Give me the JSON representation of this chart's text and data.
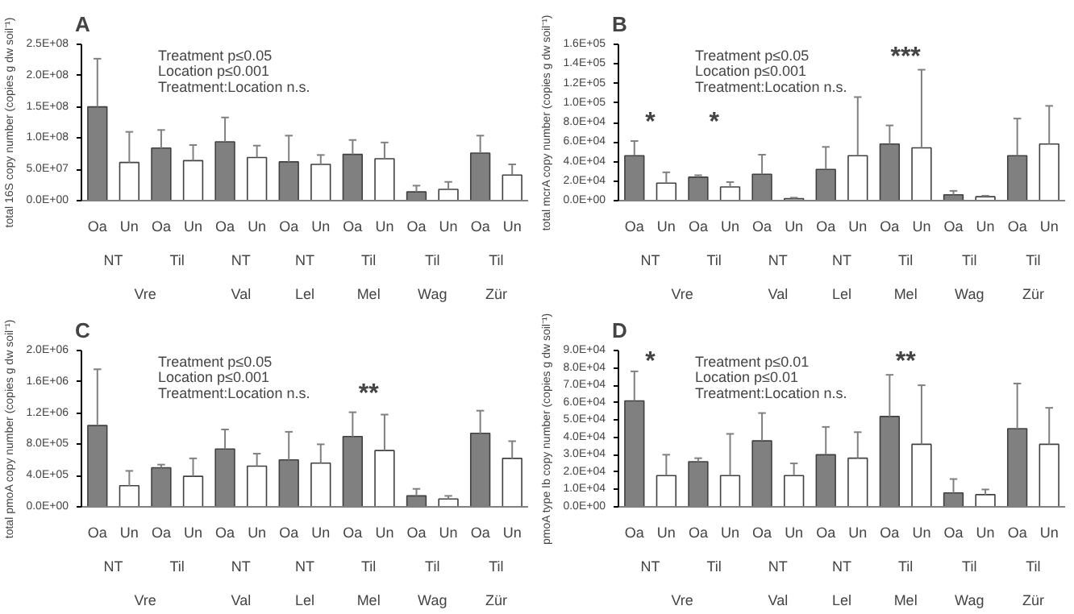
{
  "chart_data": [
    {
      "type": "bar",
      "title": "A",
      "ylabel": "total 16S copy number (copies g dw soil⁻¹)",
      "categories": [
        "NT",
        "Til",
        "NT",
        "NT",
        "Til",
        "Til",
        "Til"
      ],
      "series": [
        {
          "name": "Oa",
          "color": "#808080",
          "values": [
            150000000.0,
            84000000.0,
            94000000.0,
            62000000.0,
            74000000.0,
            14000000.0,
            76000000.0
          ],
          "errors": [
            [
              150000000.0,
              227000000.0
            ],
            [
              84000000.0,
              113000000.0
            ],
            [
              94000000.0,
              133000000.0
            ],
            [
              62000000.0,
              104000000.0
            ],
            [
              74000000.0,
              97000000.0
            ],
            [
              14000000.0,
              24000000.0
            ],
            [
              76000000.0,
              104000000.0
            ]
          ]
        },
        {
          "name": "Un",
          "color": "#ffffff",
          "values": [
            61000000.0,
            64000000.0,
            69000000.0,
            58000000.0,
            67000000.0,
            18000000.0,
            41000000.0
          ],
          "errors": [
            [
              61000000.0,
              110000000.0
            ],
            [
              64000000.0,
              89000000.0
            ],
            [
              69000000.0,
              88000000.0
            ],
            [
              58000000.0,
              73000000.0
            ],
            [
              67000000.0,
              93000000.0
            ],
            [
              18000000.0,
              30000000.0
            ],
            [
              41000000.0,
              58000000.0
            ]
          ]
        }
      ],
      "ylim": [
        0,
        250000000.0
      ],
      "yticks": [
        {
          "value": 0,
          "label": "0.0E+00"
        },
        {
          "value": 50000000.0,
          "label": "5.0E+07"
        },
        {
          "value": 100000000.0,
          "label": "1.0E+08"
        },
        {
          "value": 150000000.0,
          "label": "1.5E+08"
        },
        {
          "value": 200000000.0,
          "label": "2.0E+08"
        },
        {
          "value": 250000000.0,
          "label": "2.5E+08"
        }
      ],
      "annotations": [
        "Treatment p≤0.05",
        "Location p≤0.001",
        "Treatment:Location n.s.",
        "Vre",
        "Val",
        "Lel",
        "Mel",
        "Wag",
        "Zür"
      ]
    },
    {
      "type": "bar",
      "title": "B",
      "ylabel": "total mcrA copy number (copies g dw soil⁻¹)",
      "categories": [
        "NT",
        "Til",
        "NT",
        "NT",
        "Til",
        "Til",
        "Til"
      ],
      "series": [
        {
          "name": "Oa",
          "color": "#808080",
          "values": [
            46000.0,
            24000.0,
            27000.0,
            32000.0,
            58000.0,
            6000.0,
            46000.0
          ],
          "errors": [
            [
              46000.0,
              61000.0
            ],
            [
              24000.0,
              26000.0
            ],
            [
              27000.0,
              47000.0
            ],
            [
              32000.0,
              55000.0
            ],
            [
              58000.0,
              77000.0
            ],
            [
              6000.0,
              10000.0
            ],
            [
              46000.0,
              84000.0
            ]
          ]
        },
        {
          "name": "Un",
          "color": "#ffffff",
          "values": [
            18000.0,
            14000.0,
            2000.0,
            46000.0,
            54000.0,
            4000.0,
            58000.0
          ],
          "errors": [
            [
              18000.0,
              29000.0
            ],
            [
              14000.0,
              19000.0
            ],
            [
              2000.0,
              3000.0
            ],
            [
              46000.0,
              106000.0
            ],
            [
              54000.0,
              134000.0
            ],
            [
              4000.0,
              5000.0
            ],
            [
              58000.0,
              97000.0
            ]
          ]
        }
      ],
      "ylim": [
        0,
        160000.0
      ],
      "yticks": [
        {
          "value": 0,
          "label": "0.0E+00"
        },
        {
          "value": 20000.0,
          "label": "2.0E+04"
        },
        {
          "value": 40000.0,
          "label": "4.0E+04"
        },
        {
          "value": 60000.0,
          "label": "6.0E+04"
        },
        {
          "value": 80000.0,
          "label": "8.0E+04"
        },
        {
          "value": 100000.0,
          "label": "1.0E+05"
        },
        {
          "value": 120000.0,
          "label": "1.2E+05"
        },
        {
          "value": 140000.0,
          "label": "1.4E+05"
        },
        {
          "value": 160000.0,
          "label": "1.6E+05"
        }
      ],
      "annotations": [
        "Treatment p≤0.05",
        "Location p≤0.001",
        "Treatment:Location n.s.",
        "Vre",
        "Val",
        "Lel",
        "Mel",
        "Wag",
        "Zür",
        "*",
        "*",
        "***"
      ]
    },
    {
      "type": "bar",
      "title": "C",
      "ylabel": "total pmoA copy number (copies g dw soil⁻¹)",
      "categories": [
        "NT",
        "Til",
        "NT",
        "NT",
        "Til",
        "Til",
        "Til"
      ],
      "series": [
        {
          "name": "Oa",
          "color": "#808080",
          "values": [
            1040000.0,
            500000.0,
            740000.0,
            600000.0,
            900000.0,
            140000.0,
            940000.0
          ],
          "errors": [
            [
              1040000.0,
              1760000.0
            ],
            [
              500000.0,
              540000.0
            ],
            [
              740000.0,
              990000.0
            ],
            [
              600000.0,
              960000.0
            ],
            [
              900000.0,
              1210000.0
            ],
            [
              140000.0,
              230000.0
            ],
            [
              940000.0,
              1230000.0
            ]
          ]
        },
        {
          "name": "Un",
          "color": "#ffffff",
          "values": [
            270000.0,
            390000.0,
            520000.0,
            560000.0,
            720000.0,
            100000.0,
            620000.0
          ],
          "errors": [
            [
              270000.0,
              460000.0
            ],
            [
              390000.0,
              620000.0
            ],
            [
              520000.0,
              680000.0
            ],
            [
              560000.0,
              800000.0
            ],
            [
              720000.0,
              1180000.0
            ],
            [
              100000.0,
              140000.0
            ],
            [
              620000.0,
              840000.0
            ]
          ]
        }
      ],
      "ylim": [
        0,
        2000000.0
      ],
      "yticks": [
        {
          "value": 0,
          "label": "0.0E+00"
        },
        {
          "value": 400000.0,
          "label": "4.0E+05"
        },
        {
          "value": 800000.0,
          "label": "8.0E+05"
        },
        {
          "value": 1200000.0,
          "label": "1.2E+06"
        },
        {
          "value": 1600000.0,
          "label": "1.6E+06"
        },
        {
          "value": 2000000.0,
          "label": "2.0E+06"
        }
      ],
      "annotations": [
        "Treatment p≤0.05",
        "Location p≤0.001",
        "Treatment:Location n.s.",
        "Vre",
        "Val",
        "Lel",
        "Mel",
        "Wag",
        "Zür",
        "**"
      ]
    },
    {
      "type": "bar",
      "title": "D",
      "ylabel": "pmoA type Ib copy number (copies g dw soil⁻¹)",
      "categories": [
        "NT",
        "Til",
        "NT",
        "NT",
        "Til",
        "Til",
        "Til"
      ],
      "series": [
        {
          "name": "Oa",
          "color": "#808080",
          "values": [
            61000.0,
            26000.0,
            38000.0,
            30000.0,
            52000.0,
            8000.0,
            45000.0
          ],
          "errors": [
            [
              61000.0,
              78000.0
            ],
            [
              26000.0,
              28000.0
            ],
            [
              38000.0,
              54000.0
            ],
            [
              30000.0,
              46000.0
            ],
            [
              52000.0,
              76000.0
            ],
            [
              8000.0,
              16000.0
            ],
            [
              45000.0,
              71000.0
            ]
          ]
        },
        {
          "name": "Un",
          "color": "#ffffff",
          "values": [
            18000.0,
            18000.0,
            18000.0,
            28000.0,
            36000.0,
            7000.0,
            36000.0
          ],
          "errors": [
            [
              18000.0,
              30000.0
            ],
            [
              18000.0,
              42000.0
            ],
            [
              18000.0,
              25000.0
            ],
            [
              28000.0,
              43000.0
            ],
            [
              36000.0,
              70000.0
            ],
            [
              7000.0,
              10000.0
            ],
            [
              36000.0,
              57000.0
            ]
          ]
        }
      ],
      "ylim": [
        0,
        90000.0
      ],
      "yticks": [
        {
          "value": 0,
          "label": "0.0E+00"
        },
        {
          "value": 10000.0,
          "label": "1.0E+04"
        },
        {
          "value": 20000.0,
          "label": "2.0E+04"
        },
        {
          "value": 30000.0,
          "label": "3.0E+04"
        },
        {
          "value": 40000.0,
          "label": "4.0E+04"
        },
        {
          "value": 50000.0,
          "label": "5.0E+04"
        },
        {
          "value": 60000.0,
          "label": "6.0E+04"
        },
        {
          "value": 70000.0,
          "label": "7.0E+04"
        },
        {
          "value": 80000.0,
          "label": "8.0E+04"
        },
        {
          "value": 90000.0,
          "label": "9.0E+04"
        }
      ],
      "annotations": [
        "Treatment p≤0.01",
        "Location p≤0.01",
        "Treatment:Location n.s.",
        "Vre",
        "Val",
        "Lel",
        "Mel",
        "Wag",
        "Zür",
        "*",
        "**"
      ]
    }
  ]
}
